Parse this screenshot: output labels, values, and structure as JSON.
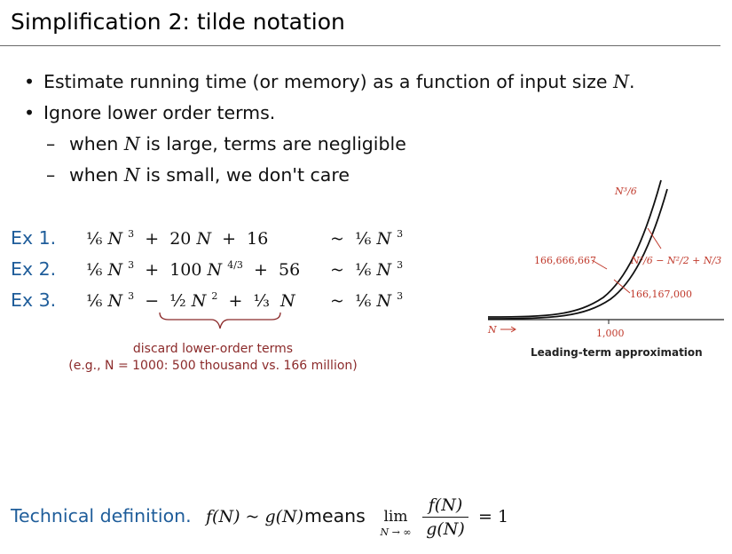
{
  "slide": {
    "title": "Simplification 2:  tilde notation",
    "bullets": [
      {
        "bullet": "•",
        "text_before": "Estimate running time (or memory) as a function of input size ",
        "var": "N",
        "text_after": "."
      },
      {
        "bullet": "•",
        "text": "Ignore lower order terms."
      }
    ],
    "sub_bullets": [
      {
        "dash": "–",
        "text_before": "when ",
        "var": "N",
        "text_after": " is large, terms are negligible"
      },
      {
        "dash": "–",
        "text_before": "when ",
        "var": "N",
        "text_after": " is small, we don't care"
      }
    ],
    "examples": [
      {
        "label": "Ex 1.",
        "expr": "⅙ N³ + 20 N + 16",
        "result": "~ ⅙ N³"
      },
      {
        "label": "Ex 2.",
        "expr": "⅙ N³ + 100 N^{4/3} + 56",
        "result": "~ ⅙ N³"
      },
      {
        "label": "Ex 3.",
        "expr": "⅙ N³ − ½ N² + ⅓ N",
        "result": "~ ⅙ N³"
      }
    ],
    "note": {
      "line1": "discard lower-order terms",
      "line2": "(e.g., N = 1000: 500 thousand vs. 166 million)"
    },
    "technical": {
      "label": "Technical definition.",
      "lhs": "f(N) ~ g(N)",
      "means": "means",
      "lim": "lim",
      "lim_sub": "N → ∞",
      "numerator": "f(N)",
      "denominator": "g(N)",
      "equals": "=  1"
    }
  },
  "chart_data": {
    "type": "line",
    "caption": "Leading-term approximation",
    "x_axis_label": "N",
    "x_tick": "1,000",
    "series": [
      {
        "name": "N³/6",
        "label": "N³/6"
      },
      {
        "name": "N³/6 − N²/2 + N/3",
        "label": "N³/6 − N²/2 + N/3"
      }
    ],
    "annotations": [
      "166,666,667",
      "166,167,000"
    ],
    "accent_color": "#c0392b"
  },
  "colors": {
    "heading_blue": "#1f5d9a",
    "note_red": "#8b2a2a",
    "chart_red": "#c0392b"
  }
}
